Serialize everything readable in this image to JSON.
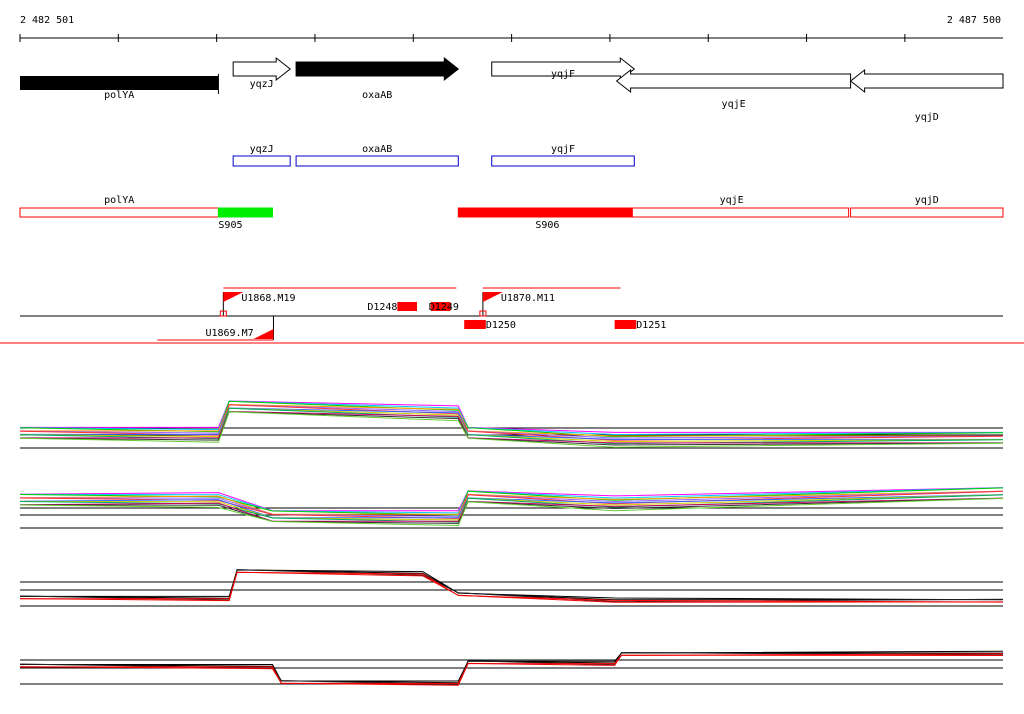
{
  "coordinates": {
    "start": 2482501,
    "end": 2487500,
    "start_label": "2 482 501",
    "end_label": "2 487 500"
  },
  "genes": [
    {
      "name": "polYA",
      "start": 2482501,
      "end": 2483510,
      "strand": "-",
      "style": "filled"
    },
    {
      "name": "yqzJ",
      "start": 2483585,
      "end": 2483875,
      "strand": "+",
      "style": "outline"
    },
    {
      "name": "oxaAB",
      "start": 2483905,
      "end": 2484730,
      "strand": "+",
      "style": "filled"
    },
    {
      "name": "yqjF",
      "start": 2484900,
      "end": 2485625,
      "strand": "+",
      "style": "outline"
    },
    {
      "name": "yqjE",
      "start": 2485535,
      "end": 2486725,
      "strand": "-",
      "style": "outline"
    },
    {
      "name": "yqjD",
      "start": 2486725,
      "end": 2487500,
      "strand": "-",
      "style": "outline"
    }
  ],
  "cds_boxes": [
    {
      "name": "yqzJ",
      "start": 2483585,
      "end": 2483875
    },
    {
      "name": "oxaAB",
      "start": 2483905,
      "end": 2484730
    },
    {
      "name": "yqjF",
      "start": 2484900,
      "end": 2485625
    }
  ],
  "annotation_boxes": [
    {
      "label": "polYA",
      "start": 2482501,
      "end": 2483510,
      "type": "outline"
    },
    {
      "label": "S905",
      "start": 2483510,
      "end": 2483785,
      "type": "green"
    },
    {
      "label": "S906",
      "start": 2484730,
      "end": 2485615,
      "type": "red"
    },
    {
      "label": "yqjE",
      "start": 2485525,
      "end": 2486715,
      "type": "outline"
    },
    {
      "label": "yqjD",
      "start": 2486725,
      "end": 2487500,
      "type": "outline"
    }
  ],
  "features": [
    {
      "label": "U1868.M19",
      "type": "upper-flag",
      "start": 2483535,
      "end": 2484720
    },
    {
      "label": "U1869.M7",
      "type": "lower-flag",
      "start": 2483200,
      "end": 2483790
    },
    {
      "label": "U1870.M11",
      "type": "upper-flag",
      "start": 2484855,
      "end": 2485555
    },
    {
      "label": "D1248",
      "type": "red-block",
      "start": 2484420,
      "end": 2484520
    },
    {
      "label": "D1249",
      "type": "red-block",
      "start": 2484590,
      "end": 2484690
    },
    {
      "label": "D1250",
      "type": "red-block",
      "start": 2484760,
      "end": 2484870
    },
    {
      "label": "D1251",
      "type": "red-block",
      "start": 2485525,
      "end": 2485635
    }
  ],
  "panels": [
    {
      "name": "panel-1",
      "kind": "colored",
      "baseline_level": 0.2,
      "breakpoints": [
        [
          2482501,
          0.2
        ],
        [
          2483510,
          0.2
        ],
        [
          2483565,
          1.0
        ],
        [
          2484730,
          0.85
        ],
        [
          2484780,
          0.2
        ],
        [
          2485525,
          0.05
        ],
        [
          2487500,
          0.05
        ]
      ]
    },
    {
      "name": "panel-2",
      "kind": "colored",
      "baseline_level": 0.5,
      "breakpoints": [
        [
          2482501,
          0.6
        ],
        [
          2483510,
          0.65
        ],
        [
          2483785,
          0.1
        ],
        [
          2484730,
          0.1
        ],
        [
          2484780,
          0.7
        ],
        [
          2485525,
          0.55
        ],
        [
          2487500,
          0.8
        ]
      ]
    },
    {
      "name": "panel-3",
      "kind": "black-red",
      "baseline_level": 0.2,
      "breakpoints": [
        [
          2482501,
          0.2
        ],
        [
          2483565,
          0.2
        ],
        [
          2483605,
          1.0
        ],
        [
          2484550,
          0.95
        ],
        [
          2484730,
          0.3
        ],
        [
          2485525,
          0.15
        ],
        [
          2487500,
          0.1
        ]
      ]
    },
    {
      "name": "panel-4",
      "kind": "black-red",
      "baseline_level": 0.5,
      "breakpoints": [
        [
          2482501,
          0.5
        ],
        [
          2483785,
          0.5
        ],
        [
          2483830,
          0.0
        ],
        [
          2484730,
          0.0
        ],
        [
          2484780,
          0.6
        ],
        [
          2485525,
          0.6
        ],
        [
          2485560,
          0.85
        ],
        [
          2487500,
          0.9
        ]
      ]
    }
  ],
  "colors": {
    "filled_gene": "#000000",
    "cds_outline": "#0000cc",
    "annotation_outline": "#ff0000",
    "green_box": "#00ee00",
    "red_box": "#ff0000",
    "separator": "#ff0000",
    "panel_series": [
      "#ff00ff",
      "#00ccff",
      "#00cc00",
      "#ff9900",
      "#9966ff",
      "#ff3333",
      "#3366ff",
      "#cccc00",
      "#00aa66",
      "#cc0066",
      "#333333",
      "#66cc33"
    ]
  }
}
